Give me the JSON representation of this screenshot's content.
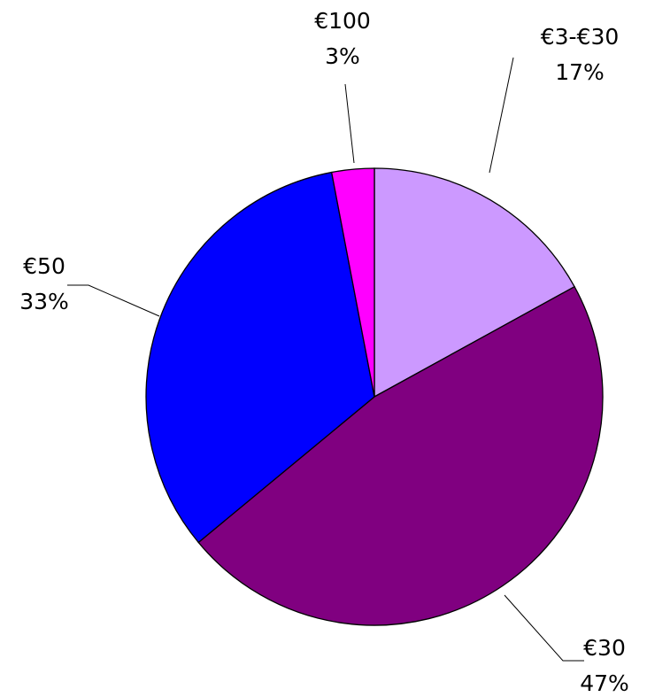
{
  "chart_data": {
    "type": "pie",
    "categories": [
      "€3-€30",
      "€30",
      "€50",
      "€100"
    ],
    "values": [
      17,
      47,
      33,
      3
    ],
    "value_labels": [
      "17%",
      "47%",
      "33%",
      "3%"
    ],
    "colors": [
      "#cc99ff",
      "#800080",
      "#0000ff",
      "#ff00ff"
    ]
  }
}
